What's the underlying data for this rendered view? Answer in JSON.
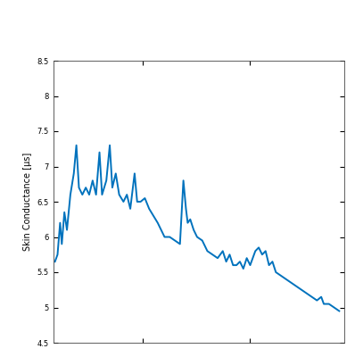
{
  "chart_data": {
    "type": "line",
    "y_label": "Skin Conductance [μs]",
    "x": [
      17.6,
      20,
      22.4,
      24,
      26.4,
      28.8,
      32,
      35.2,
      37.6,
      40,
      43.2,
      46.4,
      49.6,
      52.8,
      56,
      59.2,
      61.6,
      65.6,
      68.8,
      71.2,
      74.4,
      77.6,
      81.6,
      84.8,
      88,
      92,
      94.4,
      97.6,
      101.6,
      105.6,
      109.6,
      113.6,
      116.8,
      120,
      124.8,
      129.6,
      134.4,
      137.6,
      140,
      141.6,
      144,
      147.2,
      150.4,
      155.2,
      160,
      164.8,
      169.6,
      174.4,
      177.6,
      180.8,
      184,
      187.2,
      190.4,
      193.6,
      196.8,
      200,
      204.8,
      208,
      211.2,
      214.4,
      217.6,
      220.8,
      224,
      228.8,
      233.6,
      238.4,
      243.2,
      248,
      252.8,
      257.6,
      262.4,
      266.4,
      268.8,
      273.6,
      278.4,
      283.2
    ],
    "values": [
      5.65,
      5.75,
      6.2,
      5.9,
      6.35,
      6.1,
      6.6,
      6.9,
      7.3,
      6.7,
      6.6,
      6.7,
      6.6,
      6.8,
      6.6,
      7.2,
      6.6,
      6.8,
      7.3,
      6.7,
      6.9,
      6.6,
      6.5,
      6.6,
      6.4,
      6.9,
      6.5,
      6.5,
      6.55,
      6.4,
      6.3,
      6.2,
      6.1,
      6.0,
      6.0,
      5.95,
      5.9,
      6.8,
      6.4,
      6.2,
      6.25,
      6.1,
      6.0,
      5.95,
      5.8,
      5.75,
      5.7,
      5.8,
      5.65,
      5.75,
      5.6,
      5.6,
      5.65,
      5.55,
      5.7,
      5.6,
      5.8,
      5.85,
      5.75,
      5.8,
      5.6,
      5.65,
      5.5,
      5.45,
      5.4,
      5.35,
      5.3,
      5.25,
      5.2,
      5.15,
      5.1,
      5.15,
      5.05,
      5.05,
      5.0,
      4.95
    ],
    "color": "#0072bd",
    "xlim": [
      16,
      288
    ],
    "xticks": [
      100,
      200
    ],
    "ylim": [
      4.5,
      8.5
    ],
    "yticks": [
      4.5,
      5,
      5.5,
      6,
      6.5,
      7,
      7.5,
      8,
      8.5
    ],
    "tick_labels": "y",
    "grid": false
  }
}
